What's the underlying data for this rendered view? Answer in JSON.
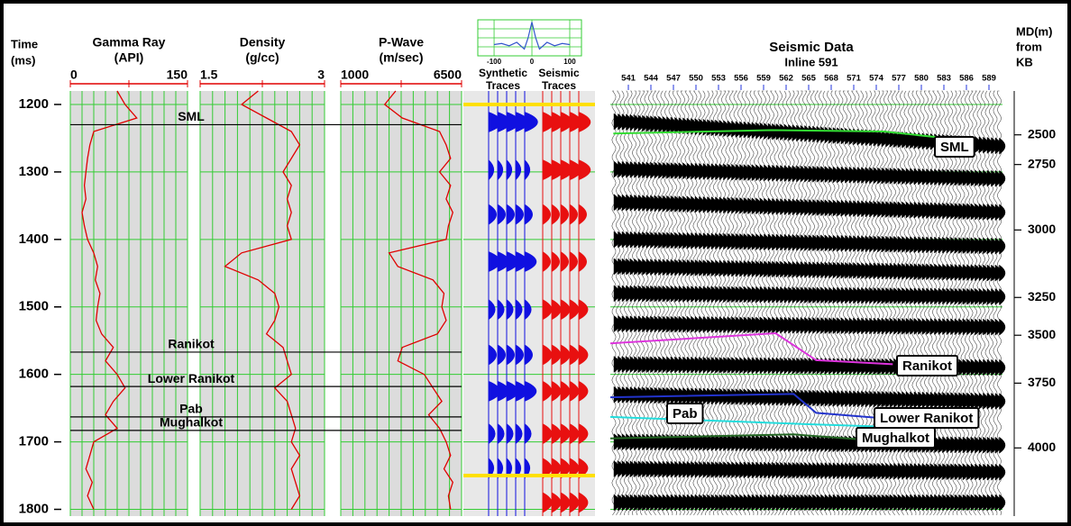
{
  "time_axis": {
    "label": "Time",
    "unit": "(ms)",
    "ylim": [
      1180,
      1810
    ],
    "ticks": [
      1200,
      1300,
      1400,
      1500,
      1600,
      1700,
      1800
    ],
    "grid_color": "#33cc33"
  },
  "logs": {
    "time": [
      1180,
      1200,
      1220,
      1240,
      1260,
      1280,
      1300,
      1320,
      1340,
      1360,
      1380,
      1400,
      1420,
      1440,
      1460,
      1480,
      1500,
      1520,
      1540,
      1560,
      1580,
      1600,
      1620,
      1640,
      1660,
      1680,
      1700,
      1720,
      1740,
      1760,
      1780,
      1800
    ],
    "tracks": [
      {
        "name": "Gamma Ray",
        "unit": "(API)",
        "xlim": [
          0,
          150
        ],
        "color": "#e00000",
        "values": [
          60,
          70,
          85,
          30,
          25,
          22,
          20,
          18,
          20,
          15,
          18,
          22,
          30,
          35,
          32,
          38,
          35,
          33,
          40,
          55,
          45,
          60,
          70,
          55,
          45,
          60,
          30,
          25,
          20,
          28,
          22,
          30
        ]
      },
      {
        "name": "Density",
        "unit": "(g/cc)",
        "xlim": [
          1.5,
          3
        ],
        "color": "#e00000",
        "values": [
          2.2,
          2.0,
          2.3,
          2.6,
          2.7,
          2.6,
          2.5,
          2.6,
          2.55,
          2.6,
          2.55,
          2.6,
          2.0,
          1.8,
          2.2,
          2.4,
          2.45,
          2.4,
          2.3,
          2.5,
          2.55,
          2.6,
          2.4,
          2.55,
          2.6,
          2.65,
          2.6,
          2.7,
          2.6,
          2.65,
          2.7,
          2.6
        ]
      },
      {
        "name": "P-Wave",
        "unit": "(m/sec)",
        "xlim": [
          1000,
          6500
        ],
        "color": "#e00000",
        "values": [
          3500,
          3000,
          3800,
          5500,
          5800,
          6000,
          5500,
          6000,
          5800,
          6100,
          5900,
          5800,
          3200,
          3600,
          5200,
          5700,
          5600,
          5800,
          5400,
          3800,
          3600,
          4800,
          5200,
          5600,
          5000,
          5500,
          5800,
          6000,
          5700,
          6100,
          5900,
          6000
        ]
      }
    ]
  },
  "horizons": [
    {
      "name": "SML",
      "color": "#33dd33",
      "well_time": 1230,
      "inlines": [
        539,
        560,
        575,
        585
      ],
      "times": [
        1243,
        1238,
        1240,
        1252
      ]
    },
    {
      "name": "Ranikot",
      "color": "#dd33dd",
      "well_time": 1567,
      "inlines": [
        538.6,
        560.6,
        566,
        576.2
      ],
      "times": [
        1554,
        1539,
        1579,
        1585
      ]
    },
    {
      "name": "Lower Ranikot",
      "color": "#2233cc",
      "well_time": 1618,
      "inlines": [
        538.6,
        563,
        566,
        573.8
      ],
      "times": [
        1634,
        1629,
        1657,
        1664
      ]
    },
    {
      "name": "Pab",
      "color": "#22dddd",
      "well_time": 1663,
      "inlines": [
        538.6,
        563,
        573.8
      ],
      "times": [
        1663,
        1673,
        1677
      ]
    },
    {
      "name": "Mughalkot",
      "color": "#226622",
      "well_time": 1683,
      "inlines": [
        538.6,
        563,
        572.6
      ],
      "times": [
        1695,
        1689,
        1697
      ]
    }
  ],
  "traces": {
    "wavelet": {
      "xlim": [
        -143,
        131
      ],
      "ylim": [
        -0.5,
        1.1
      ],
      "xticks": [
        -100,
        0,
        100
      ],
      "color": "#3355cc",
      "x": [
        -100,
        -80,
        -60,
        -40,
        -20,
        -10,
        0,
        10,
        20,
        40,
        60,
        80,
        100
      ],
      "values": [
        0,
        0.05,
        -0.05,
        0.1,
        -0.2,
        0.3,
        1,
        0.3,
        -0.2,
        0.1,
        -0.05,
        0.05,
        0
      ]
    },
    "markers": [
      1200,
      1750
    ],
    "marker_color": "#ffe000",
    "panels": [
      {
        "title": [
          "Synthetic",
          "Traces"
        ],
        "color": "#1010e0",
        "events": [
          {
            "time": 1226,
            "amp": 1
          },
          {
            "time": 1297,
            "amp": 0.4
          },
          {
            "time": 1363,
            "amp": 0.6
          },
          {
            "time": 1433,
            "amp": 0.9
          },
          {
            "time": 1504,
            "amp": 0.5
          },
          {
            "time": 1571,
            "amp": 0.6
          },
          {
            "time": 1625,
            "amp": 0.9
          },
          {
            "time": 1688,
            "amp": 0.5
          },
          {
            "time": 1739,
            "amp": 0.4
          }
        ]
      },
      {
        "title": [
          "Seismic",
          "Traces"
        ],
        "color": "#e81010",
        "events": [
          {
            "time": 1226,
            "amp": 0.9
          },
          {
            "time": 1297,
            "amp": 0.9
          },
          {
            "time": 1363,
            "amp": 0.6
          },
          {
            "time": 1433,
            "amp": 0.6
          },
          {
            "time": 1504,
            "amp": 0.7
          },
          {
            "time": 1571,
            "amp": 0.7
          },
          {
            "time": 1625,
            "amp": 0.7
          },
          {
            "time": 1688,
            "amp": 0.7
          },
          {
            "time": 1739,
            "amp": 0.7
          },
          {
            "time": 1790,
            "amp": 0.7
          }
        ]
      }
    ]
  },
  "seismic": {
    "title": "Seismic Data",
    "subtitle": "Inline 591",
    "xlim": [
      538.6,
      590.8
    ],
    "tick_color": "#2233dd",
    "xticks": [
      541,
      544,
      547,
      550,
      553,
      556,
      559,
      562,
      565,
      568,
      571,
      574,
      577,
      580,
      583,
      586,
      589
    ],
    "reflectors": [
      [
        1225,
        1262
      ],
      [
        1296,
        1310
      ],
      [
        1345,
        1360
      ],
      [
        1400,
        1410
      ],
      [
        1440,
        1450
      ],
      [
        1480,
        1485
      ],
      [
        1525,
        1530
      ],
      [
        1585,
        1590
      ],
      [
        1630,
        1640
      ],
      [
        1700,
        1705
      ],
      [
        1740,
        1745
      ],
      [
        1790,
        1790
      ]
    ]
  },
  "md_axis": {
    "lines": [
      "MD(m)",
      "from",
      "KB"
    ],
    "ticks": [
      2500,
      2750,
      3000,
      3250,
      3500,
      3750,
      4000
    ],
    "tick_times": [
      1245,
      1289,
      1386,
      1486,
      1542,
      1613,
      1709
    ]
  }
}
